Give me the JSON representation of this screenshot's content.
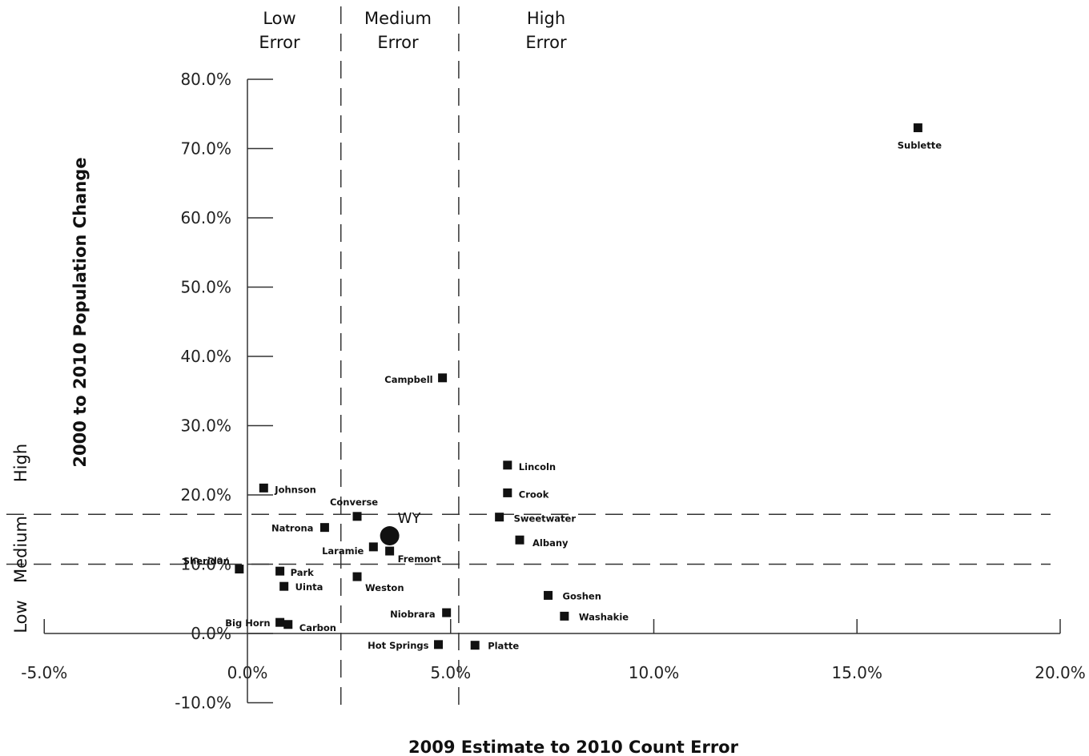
{
  "chart_data": {
    "type": "scatter",
    "title": "",
    "xlabel": "2009 Estimate to 2010 Count Error",
    "ylabel": "2000 to 2010 Population Change",
    "xlim": [
      -5,
      20
    ],
    "ylim": [
      -10,
      80
    ],
    "x_ticks": [
      -5,
      0,
      5,
      10,
      15,
      20
    ],
    "x_tick_labels": [
      "-5.0%",
      "0.0%",
      "5.0%",
      "10.0%",
      "15.0%",
      "20.0%"
    ],
    "y_ticks": [
      -10,
      0,
      10,
      20,
      30,
      40,
      50,
      60,
      70,
      80
    ],
    "y_tick_labels": [
      "-10.0%",
      "0.0%",
      "10.0%",
      "20.0%",
      "30.0%",
      "40.0%",
      "50.0%",
      "60.0%",
      "70.0%",
      "80.0%"
    ],
    "error_zones": [
      {
        "label_line1": "Low",
        "label_line2": "Error"
      },
      {
        "label_line1": "Medium",
        "label_line2": "Error"
      },
      {
        "label_line1": "High",
        "label_line2": "Error"
      }
    ],
    "error_thresholds": [
      2.3,
      5.2
    ],
    "change_zones": [
      "High",
      "Medium",
      "Low"
    ],
    "change_thresholds": [
      10.0,
      17.2
    ],
    "state_point": {
      "name": "WY",
      "x": 3.5,
      "y": 14.1
    },
    "points": [
      {
        "name": "Sublette",
        "x": 16.5,
        "y": 73.0
      },
      {
        "name": "Campbell",
        "x": 4.8,
        "y": 36.9
      },
      {
        "name": "Lincoln",
        "x": 6.4,
        "y": 24.3
      },
      {
        "name": "Crook",
        "x": 6.4,
        "y": 20.3
      },
      {
        "name": "Johnson",
        "x": 0.4,
        "y": 21.0
      },
      {
        "name": "Sweetwater",
        "x": 6.2,
        "y": 16.8
      },
      {
        "name": "Converse",
        "x": 2.7,
        "y": 16.9
      },
      {
        "name": "Natrona",
        "x": 1.9,
        "y": 15.3
      },
      {
        "name": "Albany",
        "x": 6.7,
        "y": 13.5
      },
      {
        "name": "Laramie",
        "x": 3.1,
        "y": 12.5
      },
      {
        "name": "Fremont",
        "x": 3.5,
        "y": 11.9
      },
      {
        "name": "Sheridan",
        "x": -0.2,
        "y": 9.3
      },
      {
        "name": "Park",
        "x": 0.8,
        "y": 9.0
      },
      {
        "name": "Weston",
        "x": 2.7,
        "y": 8.2
      },
      {
        "name": "Uinta",
        "x": 0.9,
        "y": 6.8
      },
      {
        "name": "Goshen",
        "x": 7.4,
        "y": 5.5
      },
      {
        "name": "Niobrara",
        "x": 4.9,
        "y": 3.0
      },
      {
        "name": "Washakie",
        "x": 7.8,
        "y": 2.5
      },
      {
        "name": "Big Horn",
        "x": 0.8,
        "y": 1.6
      },
      {
        "name": "Carbon",
        "x": 1.0,
        "y": 1.3
      },
      {
        "name": "Hot Springs",
        "x": 4.7,
        "y": -1.6
      },
      {
        "name": "Platte",
        "x": 5.6,
        "y": -1.7
      }
    ],
    "grid": false,
    "legend": "none"
  }
}
